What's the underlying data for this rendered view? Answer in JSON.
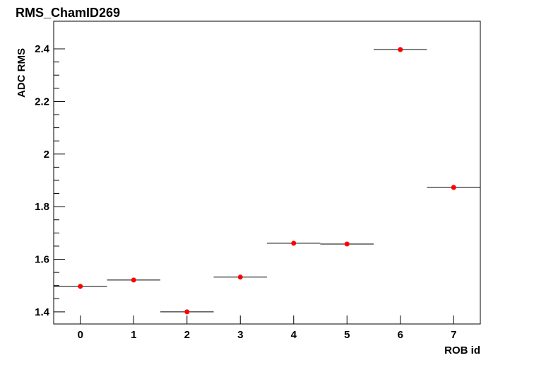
{
  "chart_data": {
    "type": "scatter",
    "title": "RMS_ChamID269",
    "x_label": "ROB id",
    "y_label": "ADC RMS",
    "x": [
      0,
      1,
      2,
      3,
      4,
      5,
      6,
      7
    ],
    "values": [
      1.497,
      1.521,
      1.4,
      1.532,
      1.661,
      1.658,
      2.397,
      1.873
    ],
    "xerr": 0.5,
    "color": "#ff0000",
    "xlim": [
      -0.5,
      7.5
    ],
    "xticks": [
      0,
      1,
      2,
      3,
      4,
      5,
      6,
      7
    ],
    "ylim": [
      1.354,
      2.505
    ],
    "yticks": [
      1.4,
      1.6,
      1.8,
      2,
      2.2,
      2.4
    ],
    "grid": false
  }
}
